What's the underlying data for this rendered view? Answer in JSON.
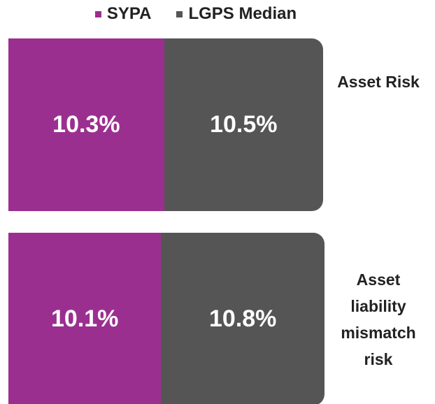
{
  "chart_data": {
    "type": "stacked-bar-horizontal",
    "categories": [
      "Asset Risk",
      "Asset liability mismatch risk"
    ],
    "series": [
      {
        "name": "SYPA",
        "color": "#9b2f90",
        "values": [
          10.3,
          10.1
        ],
        "value_labels": [
          "10.3%",
          "10.1%"
        ]
      },
      {
        "name": "LGPS Median",
        "color": "#555555",
        "values": [
          10.5,
          10.8
        ],
        "value_labels": [
          "10.5%",
          "10.8%"
        ]
      }
    ]
  }
}
